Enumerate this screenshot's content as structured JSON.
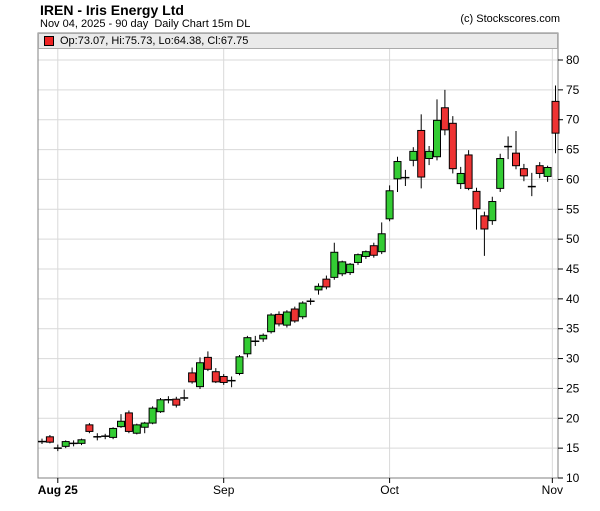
{
  "header": {
    "title": "IREN - Iris Energy Ltd",
    "subtitle": "Nov 04, 2025 - 90 day  Daily Chart 15m DL",
    "copyright": "(c) Stockscores.com"
  },
  "legend": {
    "text": "Op:73.07, Hi:75.73, Lo:64.38, Cl:67.75",
    "marker_color": "#ee2222"
  },
  "chart_data": {
    "type": "candlestick",
    "symbol": "IREN",
    "company": "Iris Energy Ltd",
    "as_of_date": "Nov 04, 2025",
    "period": "90 day",
    "interval": "Daily",
    "last_quote": {
      "open": 73.07,
      "high": 75.73,
      "low": 64.38,
      "close": 67.75
    },
    "y_axis": {
      "min": 10,
      "max": 80,
      "tick_step": 5,
      "tick_labels": [
        10,
        15,
        20,
        25,
        30,
        35,
        40,
        45,
        50,
        55,
        60,
        65,
        70,
        75,
        80
      ]
    },
    "x_axis": {
      "month_ticks": [
        {
          "label": "Aug 25",
          "index": 2,
          "bold": true
        },
        {
          "label": "Sep",
          "index": 23,
          "bold": false
        },
        {
          "label": "Oct",
          "index": 44,
          "bold": false
        },
        {
          "label": "Nov",
          "index": 64.6,
          "bold": false
        }
      ]
    },
    "colors": {
      "up": "#33cc33",
      "down": "#ee3333",
      "doji": "#000000",
      "grid": "#d9d9d9",
      "frame": "#808080",
      "legend_bg": "#eaeaea",
      "background": "#ffffff"
    },
    "grid": true,
    "candles": [
      {
        "o": 16.1,
        "h": 16.6,
        "l": 15.7,
        "c": 16.1,
        "color": "doji"
      },
      {
        "o": 16.9,
        "h": 17.2,
        "l": 15.8,
        "c": 16.0,
        "color": "down"
      },
      {
        "o": 15.1,
        "h": 15.6,
        "l": 14.5,
        "c": 15.0,
        "color": "doji"
      },
      {
        "o": 15.3,
        "h": 16.3,
        "l": 15.0,
        "c": 16.1,
        "color": "up"
      },
      {
        "o": 15.8,
        "h": 16.3,
        "l": 15.3,
        "c": 15.8,
        "color": "doji"
      },
      {
        "o": 15.8,
        "h": 16.6,
        "l": 15.5,
        "c": 16.4,
        "color": "up"
      },
      {
        "o": 18.9,
        "h": 19.2,
        "l": 17.5,
        "c": 17.8,
        "color": "down"
      },
      {
        "o": 16.9,
        "h": 17.5,
        "l": 16.3,
        "c": 16.9,
        "color": "doji"
      },
      {
        "o": 17.0,
        "h": 17.4,
        "l": 16.5,
        "c": 17.0,
        "color": "doji"
      },
      {
        "o": 16.8,
        "h": 18.5,
        "l": 16.5,
        "c": 18.3,
        "color": "up"
      },
      {
        "o": 18.6,
        "h": 20.7,
        "l": 18.4,
        "c": 19.5,
        "color": "up"
      },
      {
        "o": 20.9,
        "h": 21.3,
        "l": 17.5,
        "c": 17.8,
        "color": "down"
      },
      {
        "o": 17.5,
        "h": 19.1,
        "l": 17.3,
        "c": 18.9,
        "color": "up"
      },
      {
        "o": 18.5,
        "h": 19.4,
        "l": 17.5,
        "c": 19.2,
        "color": "up"
      },
      {
        "o": 19.2,
        "h": 22.0,
        "l": 19.0,
        "c": 21.7,
        "color": "up"
      },
      {
        "o": 21.1,
        "h": 23.4,
        "l": 20.9,
        "c": 23.1,
        "color": "up"
      },
      {
        "o": 23.1,
        "h": 23.7,
        "l": 22.5,
        "c": 23.1,
        "color": "doji"
      },
      {
        "o": 23.2,
        "h": 23.6,
        "l": 21.8,
        "c": 22.2,
        "color": "down"
      },
      {
        "o": 23.4,
        "h": 24.8,
        "l": 22.9,
        "c": 23.4,
        "color": "doji"
      },
      {
        "o": 27.6,
        "h": 28.5,
        "l": 25.8,
        "c": 26.1,
        "color": "down"
      },
      {
        "o": 25.3,
        "h": 30.2,
        "l": 24.9,
        "c": 29.3,
        "color": "up"
      },
      {
        "o": 30.2,
        "h": 31.2,
        "l": 27.9,
        "c": 28.2,
        "color": "down"
      },
      {
        "o": 27.8,
        "h": 28.4,
        "l": 25.9,
        "c": 26.1,
        "color": "down"
      },
      {
        "o": 27.0,
        "h": 27.4,
        "l": 25.6,
        "c": 26.0,
        "color": "down"
      },
      {
        "o": 26.3,
        "h": 27.0,
        "l": 25.2,
        "c": 26.3,
        "color": "doji"
      },
      {
        "o": 27.5,
        "h": 30.6,
        "l": 27.2,
        "c": 30.3,
        "color": "up"
      },
      {
        "o": 30.8,
        "h": 33.8,
        "l": 30.2,
        "c": 33.5,
        "color": "up"
      },
      {
        "o": 32.9,
        "h": 33.8,
        "l": 32.1,
        "c": 32.9,
        "color": "doji"
      },
      {
        "o": 33.3,
        "h": 34.2,
        "l": 32.8,
        "c": 33.9,
        "color": "up"
      },
      {
        "o": 34.5,
        "h": 37.6,
        "l": 34.2,
        "c": 37.3,
        "color": "up"
      },
      {
        "o": 37.4,
        "h": 37.9,
        "l": 35.4,
        "c": 35.8,
        "color": "down"
      },
      {
        "o": 35.6,
        "h": 38.1,
        "l": 35.2,
        "c": 37.8,
        "color": "up"
      },
      {
        "o": 38.3,
        "h": 38.7,
        "l": 36.0,
        "c": 36.3,
        "color": "down"
      },
      {
        "o": 37.0,
        "h": 39.6,
        "l": 36.6,
        "c": 39.3,
        "color": "up"
      },
      {
        "o": 39.6,
        "h": 40.1,
        "l": 39.0,
        "c": 39.6,
        "color": "doji"
      },
      {
        "o": 41.5,
        "h": 42.6,
        "l": 40.7,
        "c": 42.1,
        "color": "up"
      },
      {
        "o": 43.3,
        "h": 43.9,
        "l": 41.6,
        "c": 42.0,
        "color": "down"
      },
      {
        "o": 43.6,
        "h": 49.4,
        "l": 43.2,
        "c": 47.8,
        "color": "up"
      },
      {
        "o": 44.2,
        "h": 46.4,
        "l": 43.8,
        "c": 46.2,
        "color": "up"
      },
      {
        "o": 44.4,
        "h": 46.0,
        "l": 44.0,
        "c": 45.8,
        "color": "up"
      },
      {
        "o": 46.1,
        "h": 47.6,
        "l": 45.7,
        "c": 47.4,
        "color": "up"
      },
      {
        "o": 47.1,
        "h": 48.1,
        "l": 46.7,
        "c": 47.9,
        "color": "up"
      },
      {
        "o": 48.9,
        "h": 49.4,
        "l": 46.9,
        "c": 47.3,
        "color": "down"
      },
      {
        "o": 47.9,
        "h": 52.8,
        "l": 47.5,
        "c": 50.9,
        "color": "up"
      },
      {
        "o": 53.4,
        "h": 59.0,
        "l": 53.0,
        "c": 58.1,
        "color": "up"
      },
      {
        "o": 60.1,
        "h": 63.8,
        "l": 57.9,
        "c": 63.0,
        "color": "up"
      },
      {
        "o": 60.3,
        "h": 61.6,
        "l": 58.9,
        "c": 60.3,
        "color": "doji"
      },
      {
        "o": 63.2,
        "h": 65.4,
        "l": 62.2,
        "c": 64.7,
        "color": "up"
      },
      {
        "o": 68.2,
        "h": 70.9,
        "l": 58.5,
        "c": 60.4,
        "color": "down"
      },
      {
        "o": 63.5,
        "h": 65.6,
        "l": 62.4,
        "c": 64.7,
        "color": "up"
      },
      {
        "o": 63.8,
        "h": 73.4,
        "l": 63.2,
        "c": 69.9,
        "color": "up"
      },
      {
        "o": 72.0,
        "h": 75.0,
        "l": 67.4,
        "c": 68.3,
        "color": "down"
      },
      {
        "o": 69.4,
        "h": 70.6,
        "l": 61.0,
        "c": 61.8,
        "color": "down"
      },
      {
        "o": 59.3,
        "h": 62.1,
        "l": 58.4,
        "c": 61.0,
        "color": "up"
      },
      {
        "o": 64.1,
        "h": 64.9,
        "l": 58.2,
        "c": 58.5,
        "color": "down"
      },
      {
        "o": 58.0,
        "h": 58.6,
        "l": 51.6,
        "c": 55.1,
        "color": "down"
      },
      {
        "o": 53.9,
        "h": 54.6,
        "l": 47.2,
        "c": 51.7,
        "color": "down"
      },
      {
        "o": 53.1,
        "h": 57.1,
        "l": 52.4,
        "c": 56.3,
        "color": "up"
      },
      {
        "o": 58.5,
        "h": 64.3,
        "l": 57.9,
        "c": 63.5,
        "color": "up"
      },
      {
        "o": 65.5,
        "h": 67.2,
        "l": 63.4,
        "c": 65.5,
        "color": "doji"
      },
      {
        "o": 64.4,
        "h": 68.1,
        "l": 61.7,
        "c": 62.3,
        "color": "down"
      },
      {
        "o": 61.8,
        "h": 62.6,
        "l": 59.7,
        "c": 60.6,
        "color": "down"
      },
      {
        "o": 58.8,
        "h": 61.1,
        "l": 57.2,
        "c": 58.8,
        "color": "doji"
      },
      {
        "o": 62.3,
        "h": 62.9,
        "l": 60.2,
        "c": 61.0,
        "color": "down"
      },
      {
        "o": 60.5,
        "h": 62.3,
        "l": 59.6,
        "c": 62.0,
        "color": "up"
      },
      {
        "o": 73.07,
        "h": 75.73,
        "l": 64.38,
        "c": 67.75,
        "color": "down"
      }
    ]
  }
}
